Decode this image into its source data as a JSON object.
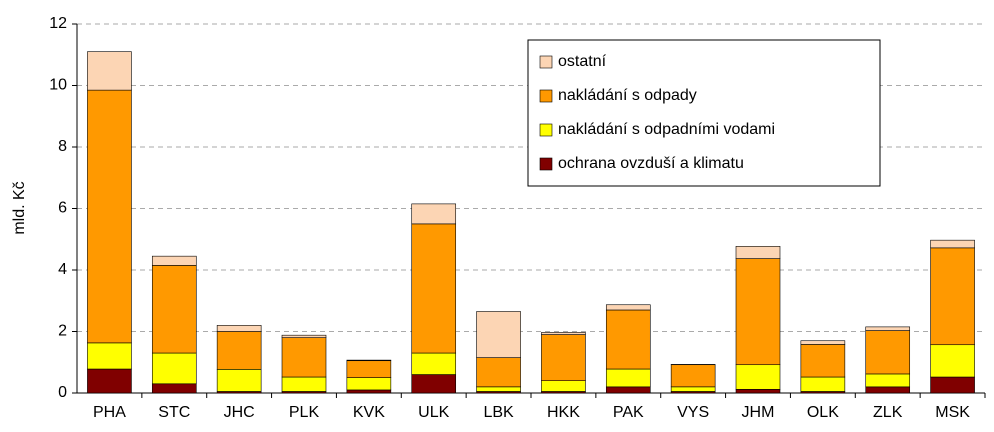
{
  "chart_data": {
    "type": "stacked_bar",
    "y_label": "mld. Kč",
    "categories": [
      "PHA",
      "STC",
      "JHC",
      "PLK",
      "KVK",
      "ULK",
      "LBK",
      "HKK",
      "PAK",
      "VYS",
      "JHM",
      "OLK",
      "ZLK",
      "MSK"
    ],
    "series": [
      {
        "name": "ochrana ovzduší a klimatu",
        "color": "#800000",
        "values": [
          0.78,
          0.3,
          0.05,
          0.05,
          0.1,
          0.6,
          0.05,
          0.05,
          0.2,
          0.05,
          0.12,
          0.05,
          0.2,
          0.52
        ]
      },
      {
        "name": "nakládání s odpadními vodami",
        "color": "#ffff00",
        "values": [
          0.85,
          1.0,
          0.72,
          0.47,
          0.4,
          0.7,
          0.15,
          0.35,
          0.58,
          0.15,
          0.8,
          0.47,
          0.42,
          1.05
        ]
      },
      {
        "name": "nakládání s odpady",
        "color": "#ff9900",
        "values": [
          8.22,
          2.85,
          1.23,
          1.28,
          0.55,
          4.2,
          0.95,
          1.5,
          1.92,
          0.72,
          3.45,
          1.06,
          1.41,
          3.15
        ]
      },
      {
        "name": "ostatní",
        "color": "#fcd5b4",
        "values": [
          1.25,
          0.3,
          0.2,
          0.08,
          0.02,
          0.65,
          1.5,
          0.07,
          0.17,
          0.01,
          0.4,
          0.12,
          0.12,
          0.25
        ]
      }
    ],
    "ylim": [
      0,
      12
    ],
    "yticks": [
      0,
      2,
      4,
      6,
      8,
      10,
      12
    ],
    "grid": true
  }
}
